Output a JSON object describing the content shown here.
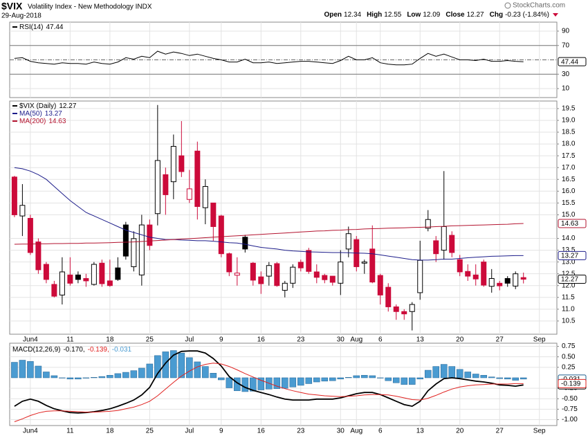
{
  "header": {
    "symbol": "$VIX",
    "name": "Volatility Index - New Methodology INDX",
    "date": "29-Aug-2018",
    "source": "StockCharts.com",
    "quote": [
      {
        "label": "Open",
        "value": "12.34"
      },
      {
        "label": "High",
        "value": "12.55"
      },
      {
        "label": "Low",
        "value": "12.09"
      },
      {
        "label": "Close",
        "value": "12.27"
      },
      {
        "label": "Chg",
        "value": "-0.23 (-1.84%)"
      }
    ]
  },
  "chart_data": [
    {
      "type": "line",
      "grid": true,
      "ylim": [
        -2.5,
        102.5
      ],
      "yticks": [
        10,
        30,
        70,
        90
      ],
      "reference_lines": [
        {
          "value": 70,
          "style": "solid"
        },
        {
          "value": 30,
          "style": "solid"
        },
        {
          "value": 50,
          "style": "dashdot"
        }
      ],
      "series": [
        {
          "name": "RSI(14)",
          "last_label": "47.44",
          "color": "#000000",
          "values": [
            52,
            53,
            48,
            46,
            45,
            44,
            46,
            45,
            45,
            44,
            47,
            45,
            44,
            47,
            53,
            51,
            55,
            53,
            62,
            58,
            61,
            59,
            56,
            58,
            55,
            52,
            50,
            47,
            47,
            51,
            46,
            46,
            47,
            45,
            46,
            47,
            48,
            48,
            47,
            46,
            45,
            49,
            55,
            50,
            50,
            53,
            46,
            44,
            43,
            43,
            44,
            52,
            59,
            55,
            58,
            54,
            50,
            50,
            49,
            51,
            48,
            48,
            49,
            48,
            47.44
          ]
        }
      ]
    },
    {
      "type": "candlestick",
      "name": "$VIX (Daily)",
      "last_label": "12.27",
      "grid": true,
      "up_color": "#000000",
      "down_color": "#cc0a3a",
      "xlim": [
        -0.6,
        68.2
      ],
      "xticks": [
        {
          "value": 2,
          "label": "Jun4"
        },
        {
          "value": 7,
          "label": "11"
        },
        {
          "value": 12,
          "label": "18"
        },
        {
          "value": 17,
          "label": "25"
        },
        {
          "value": 22,
          "label": "Jul"
        },
        {
          "value": 26,
          "label": "9"
        },
        {
          "value": 31,
          "label": "16"
        },
        {
          "value": 36,
          "label": "23"
        },
        {
          "value": 41,
          "label": "30"
        },
        {
          "value": 43,
          "label": "Aug"
        },
        {
          "value": 46,
          "label": "6"
        },
        {
          "value": 51,
          "label": "13"
        },
        {
          "value": 56,
          "label": "20"
        },
        {
          "value": 61,
          "label": "27"
        },
        {
          "value": 66,
          "label": "Sep"
        }
      ],
      "ylim": [
        9.94,
        19.82
      ],
      "yticks": [
        10.5,
        {
          "value": 11,
          "label": "11.0"
        },
        11.5,
        {
          "value": 12,
          "label": "12.0"
        },
        12.5,
        {
          "value": 13,
          "label": "13.0"
        },
        13.5,
        {
          "value": 14,
          "label": "14.0"
        },
        {
          "value": 15,
          "label": "15.0"
        },
        15.5,
        {
          "value": 16,
          "label": "16.0"
        },
        16.5,
        {
          "value": 17,
          "label": "17.0"
        },
        17.5,
        {
          "value": 18,
          "label": "18.0"
        },
        18.5,
        {
          "value": 19,
          "label": "19.0"
        },
        19.5
      ],
      "open": [
        16.6,
        14.95,
        14.85,
        13.85,
        12.9,
        12.05,
        11.6,
        12.45,
        12.45,
        12.3,
        12.05,
        12.95,
        12.2,
        12.75,
        14.57,
        12.8,
        12.45,
        14.57,
        15.05,
        16.7,
        16.4,
        17.5,
        15.65,
        17.7,
        15.3,
        15.5,
        14.95,
        13.35,
        12.44,
        14.05,
        12.95,
        12.37,
        12.4,
        12.93,
        11.8,
        12.1,
        12.99,
        13.49,
        12.58,
        12.43,
        12.4,
        12.1,
        13.55,
        13.95,
        12.95,
        13.55,
        12.43,
        11.93,
        11.1,
        10.9,
        10.9,
        11.7,
        14.43,
        13.9,
        13.5,
        14.13,
        13.1,
        12.6,
        12.45,
        13.0,
        11.97,
        12.1,
        12.3,
        11.98,
        12.34
      ],
      "high": [
        16.65,
        16.3,
        15.0,
        14.0,
        13.0,
        12.2,
        13.2,
        13.2,
        12.6,
        12.5,
        13.0,
        13.1,
        13.1,
        13.2,
        14.7,
        14.3,
        15.0,
        14.8,
        19.65,
        17.0,
        18.4,
        18.97,
        16.9,
        18.1,
        16.5,
        15.5,
        15.0,
        13.4,
        13.2,
        14.15,
        13.0,
        12.6,
        13.0,
        13.0,
        12.2,
        12.9,
        13.1,
        13.6,
        12.9,
        12.5,
        12.4,
        13.5,
        14.5,
        14.1,
        13.1,
        14.55,
        12.5,
        12.1,
        11.2,
        11.0,
        11.3,
        13.9,
        15.2,
        14.1,
        16.85,
        14.3,
        13.3,
        12.9,
        12.9,
        13.1,
        12.7,
        12.2,
        12.4,
        12.6,
        12.55
      ],
      "low": [
        14.9,
        14.1,
        13.3,
        12.5,
        12.1,
        11.5,
        11.2,
        12.0,
        12.1,
        11.95,
        12.0,
        11.95,
        11.95,
        12.2,
        13.1,
        12.6,
        12.0,
        13.5,
        14.55,
        15.0,
        15.66,
        16.6,
        15.5,
        14.8,
        14.6,
        13.9,
        13.2,
        12.4,
        12.0,
        13.4,
        12.0,
        11.65,
        12.0,
        11.95,
        11.5,
        11.9,
        12.6,
        12.5,
        12.1,
        12.1,
        12.0,
        11.6,
        13.2,
        12.6,
        12.5,
        12.1,
        11.2,
        10.9,
        10.55,
        10.55,
        10.1,
        11.4,
        14.3,
        13.0,
        13.1,
        13.2,
        12.4,
        12.2,
        12.0,
        11.95,
        11.7,
        11.8,
        11.95,
        11.85,
        12.09
      ],
      "close": [
        15.0,
        15.4,
        13.4,
        12.67,
        12.26,
        11.55,
        12.58,
        12.1,
        12.26,
        12.2,
        12.9,
        12.08,
        12.0,
        12.26,
        13.25,
        13.99,
        14.57,
        13.7,
        17.3,
        15.85,
        17.9,
        16.83,
        16.1,
        15.35,
        16.2,
        14.5,
        13.35,
        12.58,
        12.53,
        13.55,
        12.23,
        12.08,
        12.85,
        12.0,
        12.1,
        12.78,
        12.75,
        12.6,
        12.35,
        12.25,
        12.14,
        13.0,
        14.2,
        12.8,
        13.0,
        12.15,
        11.6,
        11.1,
        10.9,
        10.8,
        11.2,
        13.07,
        14.8,
        13.35,
        14.5,
        13.4,
        12.58,
        12.4,
        12.28,
        12.02,
        12.3,
        11.99,
        12.1,
        12.5,
        12.27
      ],
      "series": [
        {
          "name": "MA(50)",
          "last_label": "13.27",
          "color": "#1c1c8a",
          "values": [
            17.0,
            16.95,
            16.85,
            16.7,
            16.5,
            16.2,
            15.9,
            15.6,
            15.35,
            15.1,
            14.95,
            14.8,
            14.65,
            14.5,
            14.35,
            14.25,
            14.15,
            14.05,
            14.0,
            13.95,
            13.95,
            13.93,
            13.92,
            13.9,
            13.9,
            13.88,
            13.85,
            13.82,
            13.8,
            13.75,
            13.68,
            13.62,
            13.58,
            13.55,
            13.5,
            13.47,
            13.45,
            13.43,
            13.42,
            13.41,
            13.4,
            13.4,
            13.39,
            13.38,
            13.37,
            13.35,
            13.3,
            13.25,
            13.2,
            13.15,
            13.1,
            13.08,
            13.08,
            13.1,
            13.12,
            13.12,
            13.15,
            13.18,
            13.2,
            13.22,
            13.24,
            13.25,
            13.26,
            13.27,
            13.27
          ]
        },
        {
          "name": "MA(200)",
          "last_label": "14.63",
          "color": "#b3122e",
          "values": [
            13.75,
            13.76,
            13.76,
            13.77,
            13.77,
            13.78,
            13.78,
            13.79,
            13.79,
            13.8,
            13.8,
            13.81,
            13.82,
            13.83,
            13.84,
            13.85,
            13.87,
            13.89,
            13.91,
            13.93,
            13.95,
            13.97,
            13.99,
            14.01,
            14.03,
            14.05,
            14.07,
            14.09,
            14.11,
            14.13,
            14.15,
            14.17,
            14.19,
            14.21,
            14.23,
            14.25,
            14.27,
            14.29,
            14.31,
            14.32,
            14.34,
            14.35,
            14.37,
            14.38,
            14.4,
            14.41,
            14.42,
            14.43,
            14.44,
            14.45,
            14.46,
            14.47,
            14.48,
            14.5,
            14.51,
            14.53,
            14.54,
            14.55,
            14.56,
            14.57,
            14.58,
            14.59,
            14.6,
            14.62,
            14.63
          ]
        }
      ]
    },
    {
      "type": "line",
      "grid": true,
      "separator": ",",
      "xlim": [
        -0.6,
        68.2
      ],
      "xticks": [
        {
          "value": 2,
          "label": "Jun4"
        },
        {
          "value": 7,
          "label": "11"
        },
        {
          "value": 12,
          "label": "18"
        },
        {
          "value": 17,
          "label": "25"
        },
        {
          "value": 22,
          "label": "Jul"
        },
        {
          "value": 26,
          "label": "9"
        },
        {
          "value": 31,
          "label": "16"
        },
        {
          "value": 36,
          "label": "23"
        },
        {
          "value": 41,
          "label": "30"
        },
        {
          "value": 43,
          "label": "Aug"
        },
        {
          "value": 46,
          "label": "6"
        },
        {
          "value": 51,
          "label": "13"
        },
        {
          "value": 56,
          "label": "20"
        },
        {
          "value": 61,
          "label": "27"
        },
        {
          "value": 66,
          "label": "Sep"
        }
      ],
      "ylim": [
        -1.14,
        0.825
      ],
      "yticks": [
        0.75,
        {
          "value": 0.5,
          "label": "0.50"
        },
        0.25,
        -0.25,
        {
          "value": -0.5,
          "label": "-0.50"
        },
        -0.75,
        {
          "value": -1,
          "label": "-1.00"
        }
      ],
      "series": [
        {
          "name": "MACD(12,26,9)",
          "last_label": "-0.170",
          "color": "#000000",
          "values": [
            -0.68,
            -0.56,
            -0.51,
            -0.56,
            -0.66,
            -0.74,
            -0.79,
            -0.83,
            -0.84,
            -0.83,
            -0.81,
            -0.78,
            -0.74,
            -0.68,
            -0.61,
            -0.53,
            -0.41,
            -0.23,
            0.1,
            0.35,
            0.54,
            0.63,
            0.64,
            0.64,
            0.59,
            0.46,
            0.28,
            0.03,
            -0.12,
            -0.23,
            -0.3,
            -0.35,
            -0.4,
            -0.46,
            -0.51,
            -0.53,
            -0.53,
            -0.53,
            -0.51,
            -0.51,
            -0.51,
            -0.48,
            -0.43,
            -0.38,
            -0.35,
            -0.35,
            -0.4,
            -0.48,
            -0.56,
            -0.64,
            -0.68,
            -0.56,
            -0.31,
            -0.15,
            -0.02,
            0,
            -0.02,
            -0.05,
            -0.08,
            -0.1,
            -0.13,
            -0.17,
            -0.18,
            -0.2,
            -0.17
          ]
        },
        {
          "last_label": "-0.139",
          "color": "#e0201e",
          "values": [
            -1.05,
            -0.98,
            -0.9,
            -0.84,
            -0.8,
            -0.79,
            -0.79,
            -0.8,
            -0.81,
            -0.82,
            -0.82,
            -0.81,
            -0.8,
            -0.78,
            -0.74,
            -0.7,
            -0.64,
            -0.56,
            -0.43,
            -0.27,
            -0.11,
            0.04,
            0.16,
            0.26,
            0.32,
            0.35,
            0.33,
            0.27,
            0.19,
            0.1,
            0.02,
            -0.06,
            -0.13,
            -0.2,
            -0.26,
            -0.31,
            -0.35,
            -0.39,
            -0.41,
            -0.43,
            -0.44,
            -0.45,
            -0.44,
            -0.43,
            -0.41,
            -0.4,
            -0.4,
            -0.41,
            -0.44,
            -0.48,
            -0.52,
            -0.53,
            -0.49,
            -0.42,
            -0.34,
            -0.27,
            -0.22,
            -0.19,
            -0.17,
            -0.16,
            -0.15,
            -0.15,
            -0.15,
            -0.14,
            -0.139
          ]
        },
        {
          "type": "bar",
          "last_label": "-0.031",
          "color": "#4a9bd1",
          "values": [
            0.37,
            0.42,
            0.39,
            0.28,
            0.14,
            0.05,
            0,
            -0.03,
            -0.03,
            -0.01,
            0.01,
            0.03,
            0.06,
            0.1,
            0.13,
            0.17,
            0.23,
            0.33,
            0.53,
            0.62,
            0.65,
            0.59,
            0.48,
            0.38,
            0.27,
            0.11,
            -0.05,
            -0.24,
            -0.31,
            -0.33,
            -0.32,
            -0.29,
            -0.27,
            -0.26,
            -0.25,
            -0.22,
            -0.18,
            -0.14,
            -0.1,
            -0.08,
            -0.07,
            -0.03,
            0.01,
            0.05,
            0.06,
            0.05,
            0,
            -0.07,
            -0.12,
            -0.16,
            -0.16,
            -0.03,
            0.18,
            0.27,
            0.32,
            0.27,
            0.2,
            0.14,
            0.09,
            0.06,
            0.02,
            -0.02,
            -0.03,
            -0.06,
            -0.031
          ]
        }
      ]
    }
  ]
}
